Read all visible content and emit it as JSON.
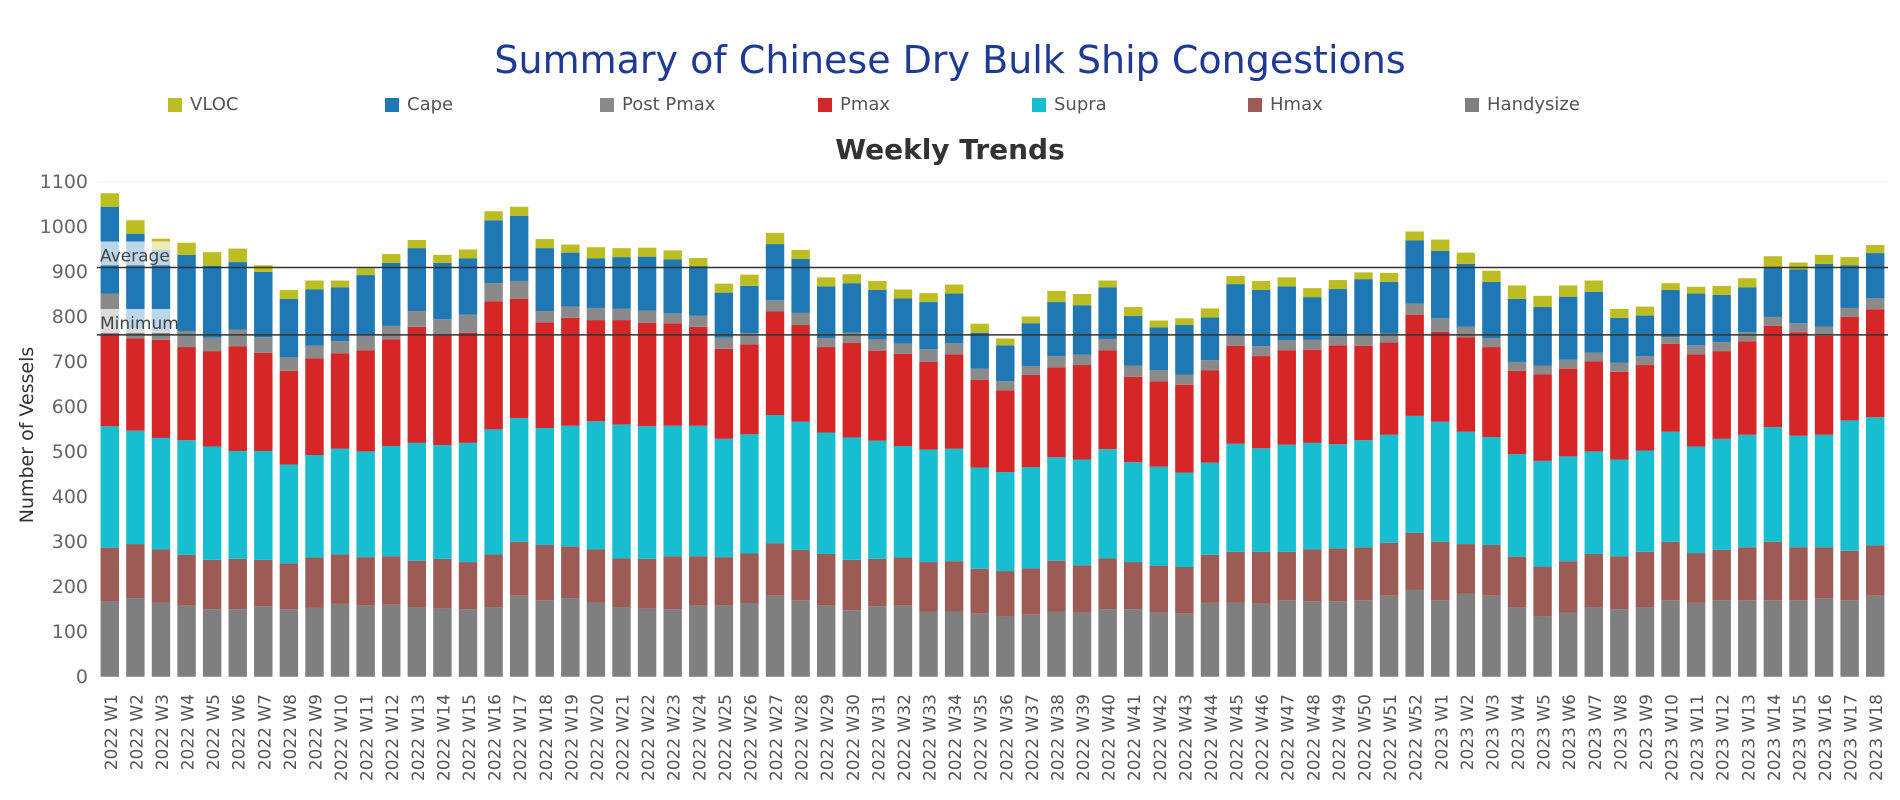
{
  "title": "Summary of Chinese Dry Bulk Ship Congestions",
  "subtitle": "Weekly Trends",
  "chart_data": {
    "type": "bar",
    "stacked": true,
    "ylabel": "Number of Vessels",
    "ylim": [
      -25,
      1100
    ],
    "yticks": [
      0,
      100,
      200,
      300,
      400,
      500,
      600,
      700,
      800,
      900,
      1000,
      1100
    ],
    "legend_position": "top",
    "reference_lines": [
      {
        "label": "Average",
        "value": 910
      },
      {
        "label": "Minimum",
        "value": 760
      }
    ],
    "categories": [
      "2022 W1",
      "2022 W2",
      "2022 W3",
      "2022 W4",
      "2022 W5",
      "2022 W6",
      "2022 W7",
      "2022 W8",
      "2022 W9",
      "2022 W10",
      "2022 W11",
      "2022 W12",
      "2022 W13",
      "2022 W14",
      "2022 W15",
      "2022 W16",
      "2022 W17",
      "2022 W18",
      "2022 W19",
      "2022 W20",
      "2022 W21",
      "2022 W22",
      "2022 W23",
      "2022 W24",
      "2022 W25",
      "2022 W26",
      "2022 W27",
      "2022 W28",
      "2022 W29",
      "2022 W30",
      "2022 W31",
      "2022 W32",
      "2022 W33",
      "2022 W34",
      "2022 W35",
      "2022 W36",
      "2022 W37",
      "2022 W38",
      "2022 W39",
      "2022 W40",
      "2022 W41",
      "2022 W42",
      "2022 W43",
      "2022 W44",
      "2022 W45",
      "2022 W46",
      "2022 W47",
      "2022 W48",
      "2022 W49",
      "2022 W50",
      "2022 W51",
      "2022 W52",
      "2023 W1",
      "2023 W2",
      "2023 W3",
      "2023 W4",
      "2023 W5",
      "2023 W6",
      "2023 W7",
      "2023 W8",
      "2023 W9",
      "2023 W10",
      "2023 W11",
      "2023 W12",
      "2023 W13",
      "2023 W14",
      "2023 W15",
      "2023 W16",
      "2023 W17",
      "2023 W18"
    ],
    "series": [
      {
        "name": "Handysize",
        "color": "#7f7f7f",
        "values": [
          167,
          175,
          165,
          158,
          150,
          150,
          157,
          150,
          153,
          162,
          158,
          160,
          155,
          152,
          150,
          155,
          180,
          170,
          175,
          165,
          155,
          152,
          150,
          158,
          158,
          164,
          180,
          170,
          158,
          148,
          157,
          158,
          145,
          145,
          140,
          135,
          138,
          145,
          143,
          150,
          150,
          143,
          140,
          165,
          165,
          163,
          170,
          168,
          168,
          170,
          180,
          193,
          170,
          185,
          180,
          155,
          135,
          142,
          155,
          150,
          155,
          170,
          165,
          170,
          170,
          170,
          170,
          175,
          170,
          180
        ]
      },
      {
        "name": "Hmax",
        "color": "#9c5c55",
        "values": [
          120,
          120,
          118,
          113,
          110,
          112,
          103,
          102,
          112,
          110,
          108,
          108,
          103,
          110,
          105,
          117,
          120,
          123,
          115,
          118,
          108,
          110,
          118,
          110,
          108,
          110,
          117,
          112,
          115,
          112,
          105,
          107,
          110,
          112,
          100,
          100,
          103,
          113,
          105,
          113,
          105,
          104,
          104,
          106,
          113,
          115,
          108,
          115,
          117,
          118,
          118,
          127,
          130,
          110,
          113,
          112,
          110,
          115,
          118,
          118,
          123,
          130,
          110,
          112,
          118,
          130,
          118,
          113,
          110,
          112
        ]
      },
      {
        "name": "Supra",
        "color": "#17becf",
        "values": [
          270,
          252,
          248,
          255,
          252,
          240,
          242,
          220,
          228,
          235,
          235,
          245,
          262,
          253,
          265,
          278,
          275,
          260,
          268,
          285,
          298,
          295,
          290,
          290,
          263,
          265,
          285,
          285,
          270,
          272,
          263,
          248,
          250,
          250,
          225,
          220,
          225,
          230,
          235,
          243,
          222,
          220,
          210,
          205,
          240,
          230,
          238,
          237,
          232,
          238,
          240,
          260,
          267,
          250,
          240,
          228,
          235,
          233,
          228,
          215,
          225,
          245,
          237,
          247,
          250,
          255,
          248,
          250,
          290,
          285
        ]
      },
      {
        "name": "Pmax",
        "color": "#d62728",
        "values": [
          205,
          205,
          218,
          207,
          212,
          233,
          218,
          208,
          215,
          212,
          225,
          237,
          258,
          245,
          245,
          285,
          265,
          235,
          240,
          225,
          232,
          230,
          228,
          220,
          200,
          200,
          230,
          215,
          190,
          210,
          200,
          205,
          195,
          210,
          195,
          182,
          205,
          200,
          210,
          220,
          190,
          190,
          195,
          205,
          218,
          205,
          210,
          207,
          220,
          210,
          205,
          225,
          200,
          210,
          200,
          185,
          192,
          195,
          200,
          195,
          190,
          195,
          205,
          195,
          208,
          225,
          230,
          220,
          230,
          240
        ]
      },
      {
        "name": "Post Pmax",
        "color": "#8a8a8a",
        "values": [
          90,
          23,
          20,
          35,
          30,
          37,
          35,
          30,
          28,
          27,
          32,
          30,
          35,
          35,
          40,
          40,
          40,
          25,
          25,
          27,
          25,
          27,
          22,
          25,
          25,
          25,
          25,
          27,
          20,
          23,
          25,
          23,
          28,
          25,
          25,
          20,
          20,
          25,
          23,
          25,
          25,
          25,
          23,
          23,
          22,
          22,
          22,
          22,
          20,
          23,
          20,
          25,
          30,
          23,
          20,
          20,
          20,
          20,
          20,
          20,
          20,
          15,
          20,
          20,
          20,
          20,
          20,
          20,
          20,
          25
        ]
      },
      {
        "name": "Cape",
        "color": "#1f77b4",
        "values": [
          193,
          210,
          180,
          170,
          160,
          150,
          145,
          130,
          125,
          120,
          135,
          140,
          140,
          125,
          125,
          140,
          145,
          140,
          120,
          110,
          115,
          120,
          120,
          110,
          100,
          105,
          125,
          120,
          115,
          110,
          110,
          100,
          105,
          110,
          80,
          80,
          95,
          120,
          110,
          115,
          110,
          95,
          110,
          95,
          115,
          125,
          120,
          95,
          105,
          125,
          115,
          140,
          150,
          140,
          125,
          140,
          130,
          140,
          135,
          100,
          90,
          105,
          115,
          105,
          100,
          110,
          120,
          140,
          95,
          100
        ]
      },
      {
        "name": "VLOC",
        "color": "#bcbd22",
        "values": [
          30,
          30,
          25,
          27,
          30,
          30,
          15,
          20,
          20,
          15,
          15,
          20,
          18,
          18,
          20,
          20,
          20,
          20,
          18,
          25,
          20,
          20,
          20,
          18,
          20,
          25,
          25,
          20,
          20,
          20,
          20,
          20,
          20,
          20,
          20,
          15,
          15,
          25,
          25,
          15,
          20,
          15,
          15,
          20,
          18,
          20,
          20,
          20,
          20,
          15,
          20,
          20,
          25,
          25,
          25,
          30,
          25,
          25,
          25,
          20,
          20,
          15,
          15,
          20,
          20,
          25,
          15,
          20,
          18,
          18
        ]
      }
    ],
    "legend_order": [
      "VLOC",
      "Cape",
      "Post Pmax",
      "Pmax",
      "Supra",
      "Hmax",
      "Handysize"
    ]
  }
}
